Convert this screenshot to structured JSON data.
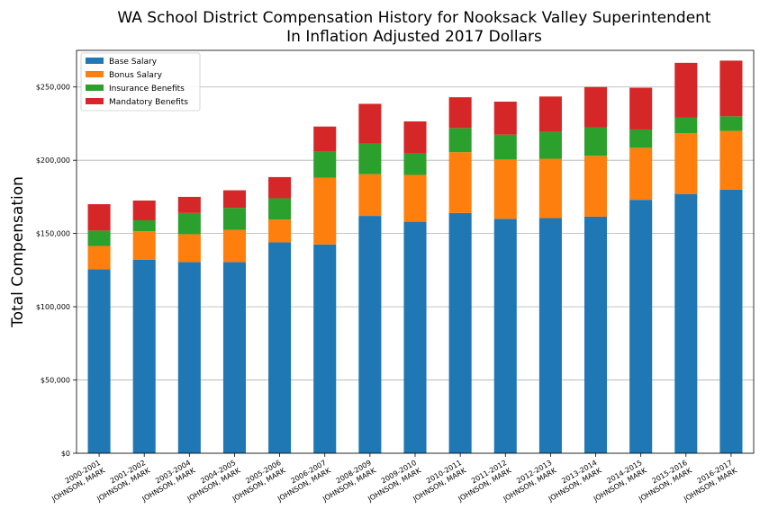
{
  "chart_data": {
    "type": "bar",
    "stacked": true,
    "title_line1": "WA School District Compensation History for Nooksack Valley Superintendent",
    "title_line2": "In Inflation Adjusted 2017 Dollars",
    "ylabel": "Total Compensation",
    "ylim": [
      0,
      275000
    ],
    "yticks": [
      0,
      50000,
      100000,
      150000,
      200000,
      250000
    ],
    "ytick_labels": [
      "$0",
      "$50,000",
      "$100,000",
      "$150,000",
      "$200,000",
      "$250,000"
    ],
    "grid": "horizontal",
    "legend_position": "top-left",
    "categories": [
      [
        "2000-2001",
        "JOHNSON, MARK"
      ],
      [
        "2001-2002",
        "JOHNSON, MARK"
      ],
      [
        "2003-2004",
        "JOHNSON, MARK"
      ],
      [
        "2004-2005",
        "JOHNSON, MARK"
      ],
      [
        "2005-2006",
        "JOHNSON, MARK"
      ],
      [
        "2006-2007",
        "JOHNSON, MARK"
      ],
      [
        "2008-2009",
        "JOHNSON, MARK"
      ],
      [
        "2009-2010",
        "JOHNSON, MARK"
      ],
      [
        "2010-2011",
        "JOHNSON, MARK"
      ],
      [
        "2011-2012",
        "JOHNSON, MARK"
      ],
      [
        "2012-2013",
        "JOHNSON, MARK"
      ],
      [
        "2013-2014",
        "JOHNSON, MARK"
      ],
      [
        "2014-2015",
        "JOHNSON, MARK"
      ],
      [
        "2015-2016",
        "JOHNSON, MARK"
      ],
      [
        "2016-2017",
        "JOHNSON, MARK"
      ]
    ],
    "series": [
      {
        "name": "Base Salary",
        "color": "#1f77b4",
        "values": [
          125500,
          132000,
          130500,
          130500,
          144000,
          142500,
          162000,
          158000,
          164000,
          160000,
          160500,
          161500,
          173000,
          177000,
          180000
        ]
      },
      {
        "name": "Bonus Salary",
        "color": "#ff7f0e",
        "values": [
          16000,
          19500,
          19000,
          22000,
          15500,
          45500,
          28500,
          32000,
          41500,
          40500,
          40500,
          41500,
          35500,
          41500,
          40000
        ]
      },
      {
        "name": "Insurance Benefits",
        "color": "#2ca02c",
        "values": [
          10500,
          7500,
          14500,
          15000,
          14500,
          18000,
          21000,
          14500,
          16500,
          17000,
          18500,
          19500,
          12500,
          10500,
          10000
        ]
      },
      {
        "name": "Mandatory Benefits",
        "color": "#d62728",
        "values": [
          18000,
          13500,
          11000,
          12000,
          14500,
          17000,
          27000,
          22000,
          21000,
          22500,
          24000,
          27500,
          28500,
          37500,
          38000
        ]
      }
    ]
  }
}
